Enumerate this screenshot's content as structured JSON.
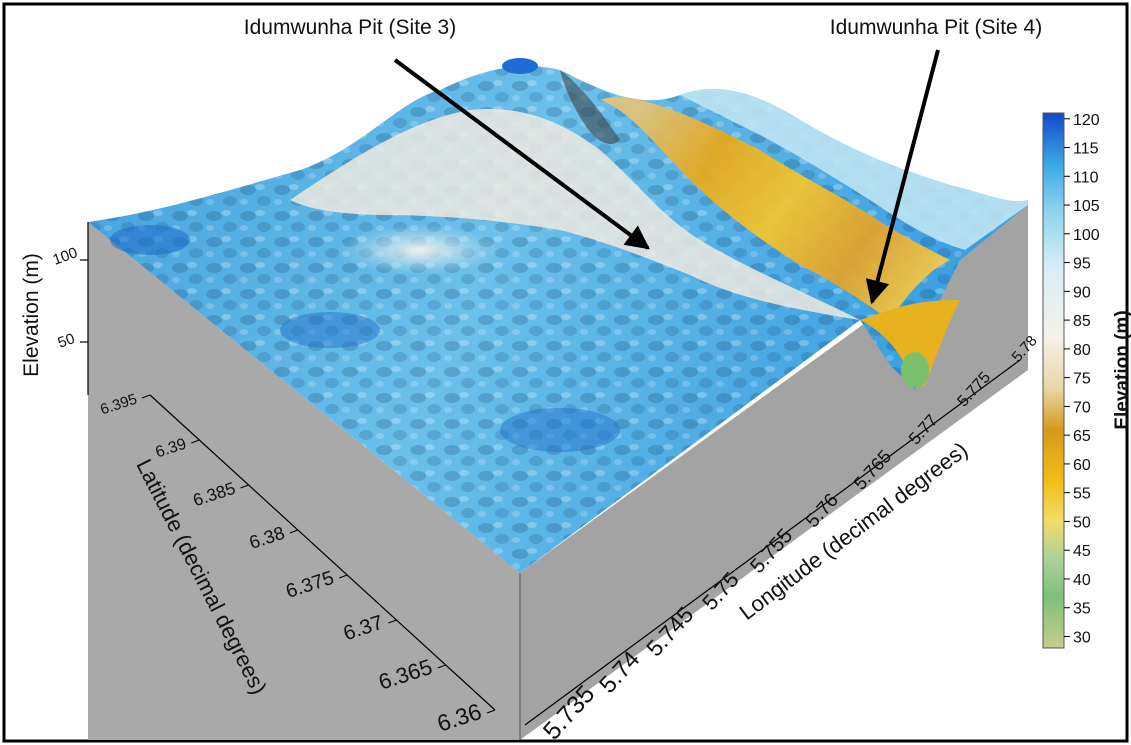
{
  "chart_data": {
    "type": "surface-3d",
    "annotations": [
      {
        "text": "Idumwunha Pit (Site 3)"
      },
      {
        "text": "Idumwunha Pit (Site 4)"
      }
    ],
    "z_axis": {
      "label": "Elevation (m)",
      "ticks": [
        "100",
        "50"
      ]
    },
    "y_axis": {
      "label": "Latitude (decimal degrees)",
      "ticks": [
        "6.395",
        "6.39",
        "6.385",
        "6.38",
        "6.375",
        "6.37",
        "6.365",
        "6.36"
      ]
    },
    "x_axis": {
      "label": "Longitude (decimal degrees)",
      "ticks": [
        "5.735",
        "5.74",
        "5.745",
        "5.75",
        "5.755",
        "5.76",
        "5.765",
        "5.77",
        "5.775",
        "5.78"
      ]
    },
    "colorbar": {
      "label": "Elevation (m)",
      "ticks": [
        "120",
        "115",
        "110",
        "105",
        "100",
        "95",
        "90",
        "85",
        "80",
        "75",
        "70",
        "65",
        "60",
        "55",
        "50",
        "45",
        "40",
        "35",
        "30"
      ],
      "range": [
        28,
        121
      ],
      "stops": [
        {
          "value": 28,
          "color": "#c8cc8c"
        },
        {
          "value": 37,
          "color": "#7ec07a"
        },
        {
          "value": 43,
          "color": "#a9cf9a"
        },
        {
          "value": 50,
          "color": "#f2dc6a"
        },
        {
          "value": 57,
          "color": "#f2be16"
        },
        {
          "value": 66,
          "color": "#d69a1a"
        },
        {
          "value": 73,
          "color": "#e8d6a4"
        },
        {
          "value": 82,
          "color": "#f5f1e8"
        },
        {
          "value": 94,
          "color": "#d9eef6"
        },
        {
          "value": 104,
          "color": "#8fd2ee"
        },
        {
          "value": 112,
          "color": "#3ba9e6"
        },
        {
          "value": 121,
          "color": "#1447c8"
        }
      ]
    }
  }
}
